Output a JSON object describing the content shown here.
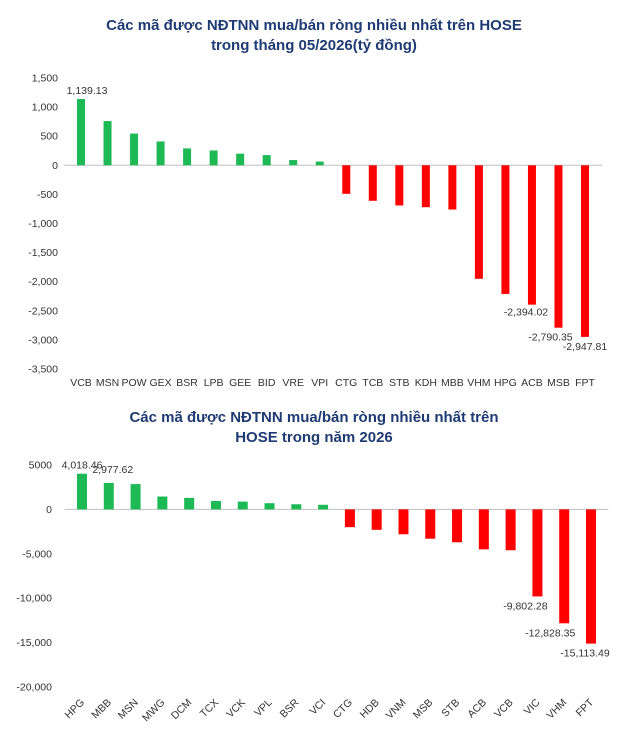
{
  "chart_data": [
    {
      "type": "bar",
      "title_line1": "Các mã được NĐTNN mua/bán ròng nhiều nhất trên HOSE",
      "title_line2": "trong tháng 05/2026(tỷ đồng)",
      "categories": [
        "VCB",
        "MSN",
        "POW",
        "GEX",
        "BSR",
        "LPB",
        "GEE",
        "BID",
        "VRE",
        "VPI",
        "CTG",
        "TCB",
        "STB",
        "KDH",
        "MBB",
        "VHM",
        "HPG",
        "ACB",
        "MSB",
        "FPT"
      ],
      "values": [
        1139.13,
        760,
        545,
        410,
        290,
        255,
        200,
        175,
        90,
        65,
        -490,
        -610,
        -690,
        -720,
        -760,
        -1950,
        -2210,
        -2394.02,
        -2790.35,
        -2947.81
      ],
      "data_labels": {
        "0": "1,139.13",
        "17": "-2,394.02",
        "18": "-2,790.35",
        "19": "-2,947.81"
      },
      "yticks": [
        1500,
        1000,
        500,
        0,
        -500,
        -1000,
        -1500,
        -2000,
        -2500,
        -3000,
        -3500
      ],
      "ytick_labels": [
        "1,500",
        "1,000",
        "500",
        "0",
        "-500",
        "-1,000",
        "-1,500",
        "-2,000",
        "-2,500",
        "-3,000",
        "-3,500"
      ],
      "ylim": [
        -3500,
        1500
      ],
      "grid": false,
      "legend": "none",
      "colors": {
        "positive": "#1db954",
        "negative": "#ff0000"
      }
    },
    {
      "type": "bar",
      "title_line1": "Các mã được NĐTNN mua/bán ròng nhiều nhất trên",
      "title_line2": "HOSE trong năm 2026",
      "categories": [
        "HPG",
        "MBB",
        "MSN",
        "MWG",
        "DCM",
        "TCX",
        "VCK",
        "VPL",
        "BSR",
        "VCI",
        "CTG",
        "HDB",
        "VNM",
        "MSB",
        "STB",
        "ACB",
        "VCB",
        "VIC",
        "VHM",
        "FPT"
      ],
      "values": [
        4018.46,
        2977.62,
        2850,
        1450,
        1300,
        950,
        880,
        700,
        580,
        520,
        -2000,
        -2300,
        -2800,
        -3300,
        -3700,
        -4500,
        -4600,
        -9802.28,
        -12828.35,
        -15113.49
      ],
      "data_labels": {
        "0": "4,018.46",
        "1": "2,977.62",
        "17": "-9,802.28",
        "18": "-12,828.35",
        "19": "-15,113.49"
      },
      "yticks": [
        5000,
        0,
        -5000,
        -10000,
        -15000,
        -20000
      ],
      "ytick_labels": [
        "5000",
        "0",
        "-5,000",
        "-10,000",
        "-15,000",
        "-20,000"
      ],
      "ylim": [
        -20000,
        5000
      ],
      "grid": false,
      "legend": "none",
      "colors": {
        "positive": "#1db954",
        "negative": "#ff0000"
      }
    }
  ]
}
